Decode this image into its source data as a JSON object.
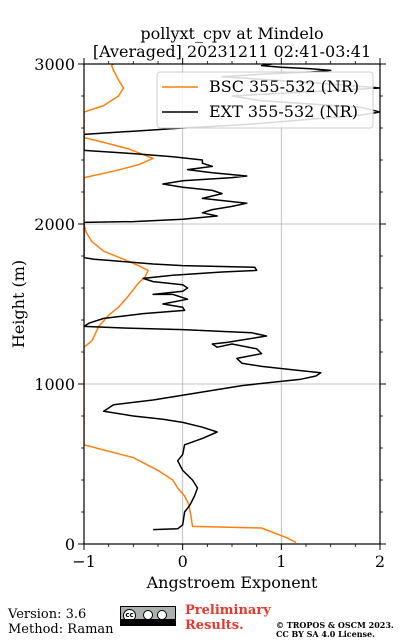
{
  "chart_data": {
    "type": "line",
    "title_line1": "pollyxt_cpv at Mindelo",
    "title_line2": "[Averaged] 20231211 02:41-03:41",
    "xlabel": "Angstroem Exponent",
    "ylabel": "Height (m)",
    "xlim": [
      -1,
      2
    ],
    "ylim": [
      0,
      3000
    ],
    "xticks": [
      -1,
      0,
      1,
      2
    ],
    "xtick_labels": [
      "−1",
      "0",
      "1",
      "2"
    ],
    "yticks": [
      0,
      1000,
      2000,
      3000
    ],
    "ytick_labels": [
      "0",
      "1000",
      "2000",
      "3000"
    ],
    "grid": true,
    "legend_position": "top-right",
    "series": [
      {
        "name": "BSC 355-532 (NR)",
        "color": "#ff7f0e",
        "points": [
          [
            1.15,
            10
          ],
          [
            1.05,
            40
          ],
          [
            0.8,
            100
          ],
          [
            0.1,
            110
          ],
          [
            0.08,
            190
          ],
          [
            0.06,
            250
          ],
          [
            0.02,
            300
          ],
          [
            -0.05,
            350
          ],
          [
            -0.1,
            400
          ],
          [
            -0.25,
            460
          ],
          [
            -0.5,
            540
          ],
          [
            -1.0,
            620
          ],
          [
            -1.0,
            1230
          ],
          [
            -0.92,
            1270
          ],
          [
            -0.85,
            1360
          ],
          [
            -0.75,
            1430
          ],
          [
            -0.65,
            1480
          ],
          [
            -0.55,
            1550
          ],
          [
            -0.45,
            1630
          ],
          [
            -0.38,
            1670
          ],
          [
            -0.35,
            1710
          ],
          [
            -0.45,
            1740
          ],
          [
            -0.6,
            1780
          ],
          [
            -0.8,
            1830
          ],
          [
            -0.92,
            1890
          ],
          [
            -0.98,
            1950
          ],
          [
            -1.0,
            2000
          ],
          [
            -1.0,
            2290
          ],
          [
            -0.7,
            2330
          ],
          [
            -0.45,
            2370
          ],
          [
            -0.3,
            2410
          ],
          [
            -0.55,
            2470
          ],
          [
            -0.8,
            2510
          ],
          [
            -1.0,
            2540
          ],
          [
            -1.0,
            2700
          ],
          [
            -0.8,
            2740
          ],
          [
            -0.65,
            2800
          ],
          [
            -0.6,
            2850
          ],
          [
            -0.65,
            2900
          ],
          [
            -0.7,
            2960
          ],
          [
            -0.72,
            2990
          ],
          [
            -0.7,
            3000
          ]
        ]
      },
      {
        "name": "EXT 355-532 (NR)",
        "color": "#000000",
        "points": [
          [
            -0.3,
            90
          ],
          [
            -0.05,
            95
          ],
          [
            0.0,
            120
          ],
          [
            0.02,
            200
          ],
          [
            0.07,
            240
          ],
          [
            0.12,
            300
          ],
          [
            0.15,
            350
          ],
          [
            0.1,
            400
          ],
          [
            0.0,
            460
          ],
          [
            -0.05,
            520
          ],
          [
            0.0,
            560
          ],
          [
            0.02,
            620
          ],
          [
            0.2,
            660
          ],
          [
            0.35,
            700
          ],
          [
            0.2,
            730
          ],
          [
            0.0,
            760
          ],
          [
            -0.2,
            780
          ],
          [
            -0.5,
            800
          ],
          [
            -0.8,
            830
          ],
          [
            -0.7,
            870
          ],
          [
            -0.3,
            900
          ],
          [
            0.1,
            940
          ],
          [
            0.6,
            990
          ],
          [
            0.9,
            1010
          ],
          [
            1.2,
            1030
          ],
          [
            1.35,
            1050
          ],
          [
            1.4,
            1070
          ],
          [
            1.1,
            1090
          ],
          [
            0.8,
            1110
          ],
          [
            0.6,
            1130
          ],
          [
            0.55,
            1160
          ],
          [
            0.8,
            1190
          ],
          [
            0.75,
            1220
          ],
          [
            0.5,
            1250
          ],
          [
            0.35,
            1230
          ],
          [
            0.3,
            1250
          ],
          [
            0.45,
            1260
          ],
          [
            0.85,
            1300
          ],
          [
            0.7,
            1320
          ],
          [
            0.0,
            1340
          ],
          [
            -0.6,
            1350
          ],
          [
            -1.0,
            1360
          ],
          [
            -0.95,
            1380
          ],
          [
            -0.8,
            1410
          ],
          [
            -0.4,
            1440
          ],
          [
            0.02,
            1460
          ],
          [
            0.0,
            1480
          ],
          [
            -0.2,
            1500
          ],
          [
            0.05,
            1530
          ],
          [
            -0.1,
            1560
          ],
          [
            -0.3,
            1560
          ],
          [
            0.0,
            1580
          ],
          [
            0.05,
            1600
          ],
          [
            0.0,
            1620
          ],
          [
            -0.3,
            1640
          ],
          [
            -0.4,
            1660
          ],
          [
            -0.1,
            1680
          ],
          [
            0.4,
            1700
          ],
          [
            0.75,
            1710
          ],
          [
            0.73,
            1730
          ],
          [
            0.0,
            1740
          ],
          [
            -0.3,
            1750
          ],
          [
            -0.5,
            1760
          ],
          [
            -0.7,
            1770
          ],
          [
            -0.9,
            1780
          ],
          [
            -1.0,
            1790
          ],
          [
            -1.0,
            2010
          ],
          [
            -0.5,
            2015
          ],
          [
            0.0,
            2030
          ],
          [
            0.35,
            2050
          ],
          [
            0.2,
            2070
          ],
          [
            0.3,
            2090
          ],
          [
            0.5,
            2110
          ],
          [
            0.65,
            2130
          ],
          [
            0.2,
            2160
          ],
          [
            0.4,
            2190
          ],
          [
            0.3,
            2210
          ],
          [
            0.0,
            2230
          ],
          [
            -0.2,
            2250
          ],
          [
            0.0,
            2270
          ],
          [
            0.5,
            2290
          ],
          [
            0.65,
            2300
          ],
          [
            0.3,
            2320
          ],
          [
            0.05,
            2340
          ],
          [
            0.3,
            2360
          ],
          [
            0.2,
            2380
          ],
          [
            0.2,
            2400
          ],
          [
            -0.1,
            2420
          ],
          [
            -0.5,
            2440
          ],
          [
            -1.0,
            2460
          ],
          [
            -1.0,
            2560
          ],
          [
            -0.5,
            2580
          ],
          [
            0.0,
            2600
          ],
          [
            0.6,
            2620
          ],
          [
            1.0,
            2640
          ],
          [
            1.4,
            2660
          ],
          [
            1.8,
            2680
          ],
          [
            2.0,
            2700
          ],
          [
            1.8,
            2730
          ],
          [
            1.3,
            2750
          ],
          [
            0.8,
            2770
          ],
          [
            0.5,
            2800
          ],
          [
            1.4,
            2830
          ],
          [
            2.0,
            2850
          ],
          [
            1.6,
            2870
          ],
          [
            0.9,
            2900
          ],
          [
            0.4,
            2920
          ],
          [
            0.9,
            2940
          ],
          [
            1.3,
            2950
          ],
          [
            1.5,
            2960
          ],
          [
            1.3,
            2970
          ],
          [
            1.0,
            2980
          ],
          [
            0.8,
            2990
          ],
          [
            0.9,
            3000
          ]
        ]
      }
    ]
  },
  "footer": {
    "version": "Version: 3.6",
    "method": "Method: Raman",
    "prelim_line1": "Preliminary",
    "prelim_line2": "Results.",
    "copyright_line1": "© TROPOS & OSCM 2023.",
    "copyright_line2": "CC BY SA 4.0 License.",
    "license_icon": "cc-by-sa-icon",
    "license_badge_text": "BY   SA"
  }
}
